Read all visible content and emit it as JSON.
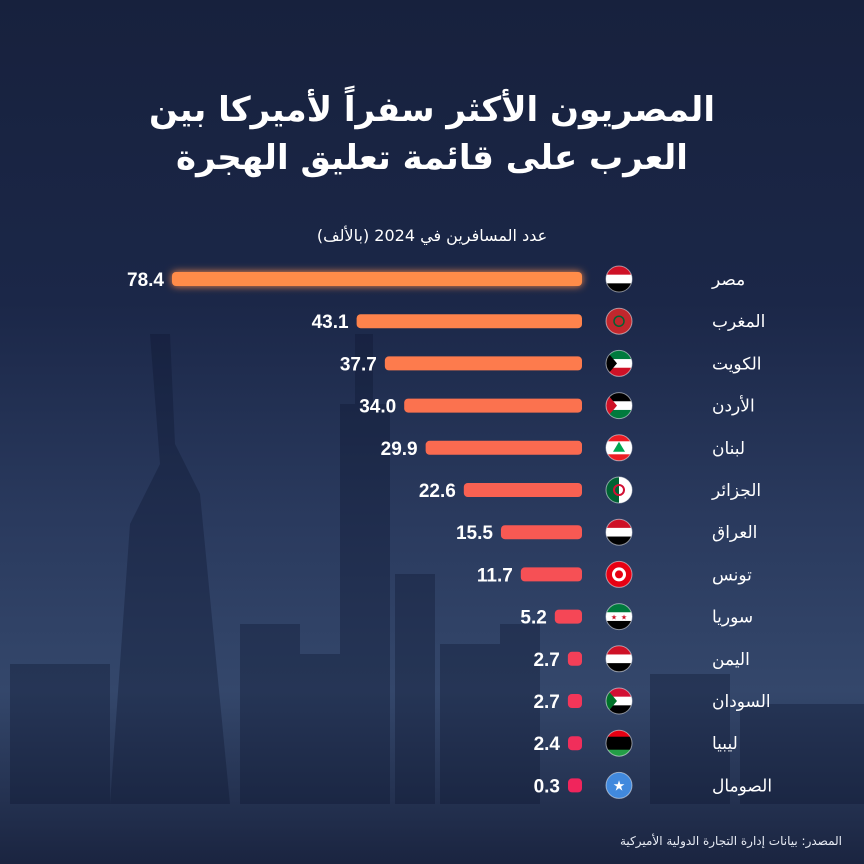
{
  "title_line1": "المصريون الأكثر سفراً لأميركا بين",
  "title_line2": "العرب على قائمة تعليق الهجرة",
  "source": "المصدر: بيانات إدارة التجارة الدولية الأميركية",
  "colors": {
    "bar_top": "#ff8c4a",
    "bar_bottom": "#f0255c"
  },
  "chart_data": {
    "type": "bar",
    "orientation": "horizontal",
    "title": "المصريون الأكثر سفراً لأميركا بين العرب على قائمة تعليق الهجرة",
    "subtitle": "عدد المسافرين في 2024 (بالألف)",
    "xlabel": "",
    "ylabel": "",
    "xlim": [
      0,
      80
    ],
    "categories": [
      "مصر",
      "المغرب",
      "الكويت",
      "الأردن",
      "لبنان",
      "الجزائر",
      "العراق",
      "تونس",
      "سوريا",
      "اليمن",
      "السودان",
      "ليبيا",
      "الصومال"
    ],
    "values": [
      78.4,
      43.1,
      37.7,
      34.0,
      29.9,
      22.6,
      15.5,
      11.7,
      5.2,
      2.7,
      2.7,
      2.4,
      0.3
    ],
    "labels": [
      "78.4",
      "43.1",
      "37.7",
      "34.0",
      "29.9",
      "22.6",
      "15.5",
      "11.7",
      "5.2",
      "2.7",
      "2.7",
      "2.4",
      "0.3"
    ],
    "flags": [
      {
        "dir": "h",
        "stripes": [
          "#ce1126",
          "#ffffff",
          "#000000"
        ],
        "icon": "egypt-flag-icon"
      },
      {
        "dir": "h",
        "stripes": [
          "#c1272d"
        ],
        "icon": "morocco-flag-icon"
      },
      {
        "dir": "h",
        "stripes": [
          "#007a3d",
          "#ffffff",
          "#ce1126"
        ],
        "tri": "#000000",
        "icon": "kuwait-flag-icon"
      },
      {
        "dir": "h",
        "stripes": [
          "#000000",
          "#ffffff",
          "#007a3d"
        ],
        "tri": "#ce1126",
        "icon": "jordan-flag-icon"
      },
      {
        "dir": "h",
        "stripes": [
          "#ed1c24",
          "#ffffff",
          "#ffffff",
          "#ed1c24"
        ],
        "icon": "lebanon-flag-icon"
      },
      {
        "dir": "v",
        "stripes": [
          "#006233",
          "#ffffff"
        ],
        "icon": "algeria-flag-icon"
      },
      {
        "dir": "h",
        "stripes": [
          "#ce1126",
          "#ffffff",
          "#000000"
        ],
        "icon": "iraq-flag-icon"
      },
      {
        "dir": "h",
        "stripes": [
          "#e70013"
        ],
        "icon": "tunisia-flag-icon"
      },
      {
        "dir": "h",
        "stripes": [
          "#007a3d",
          "#ffffff",
          "#000000"
        ],
        "icon": "syria-flag-icon"
      },
      {
        "dir": "h",
        "stripes": [
          "#ce1126",
          "#ffffff",
          "#000000"
        ],
        "icon": "yemen-flag-icon"
      },
      {
        "dir": "h",
        "stripes": [
          "#d21034",
          "#ffffff",
          "#000000"
        ],
        "tri": "#007229",
        "icon": "sudan-flag-icon"
      },
      {
        "dir": "h",
        "stripes": [
          "#e70013",
          "#000000",
          "#000000",
          "#239e46"
        ],
        "icon": "libya-flag-icon"
      },
      {
        "dir": "h",
        "stripes": [
          "#4189dd"
        ],
        "icon": "somalia-flag-icon"
      }
    ]
  }
}
